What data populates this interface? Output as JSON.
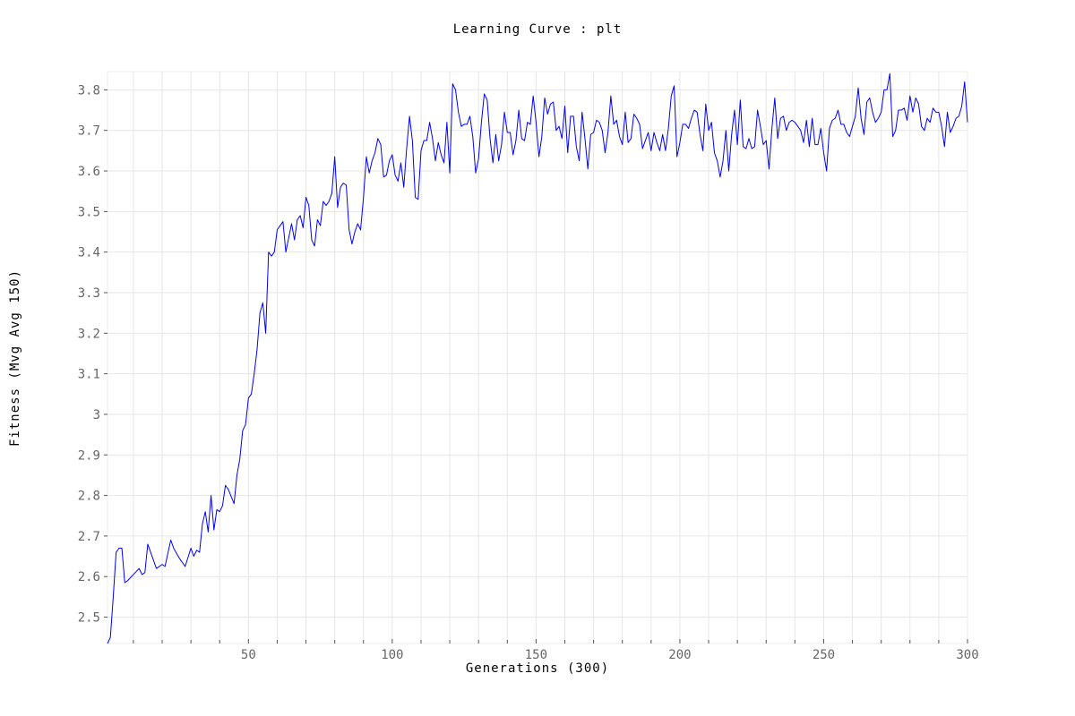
{
  "chart_data": {
    "type": "line",
    "title": "Learning Curve : plt",
    "xlabel": "Generations (300)",
    "ylabel": "Fitness (Mvg Avg 150)",
    "xlim": [
      1,
      300
    ],
    "ylim": [
      2.435,
      3.845
    ],
    "x_ticks": [
      50,
      100,
      150,
      200,
      250,
      300
    ],
    "y_ticks": [
      2.5,
      2.6,
      2.7,
      2.8,
      2.9,
      3.0,
      3.1,
      3.2,
      3.3,
      3.4,
      3.5,
      3.6,
      3.7,
      3.8
    ],
    "y_tick_labels": [
      "2.5",
      "2.6",
      "2.7",
      "2.8",
      "2.9",
      "3",
      "3.1",
      "3.2",
      "3.3",
      "3.4",
      "3.5",
      "3.6",
      "3.7",
      "3.8"
    ],
    "grid": true,
    "series": [
      {
        "color": "#0000ff",
        "keypoints": [
          [
            1,
            2.435
          ],
          [
            2,
            2.45
          ],
          [
            3,
            2.55
          ],
          [
            4,
            2.66
          ],
          [
            5,
            2.67
          ],
          [
            6,
            2.67
          ],
          [
            7,
            2.585
          ],
          [
            8,
            2.59
          ],
          [
            10,
            2.605
          ],
          [
            12,
            2.62
          ],
          [
            13,
            2.605
          ],
          [
            14,
            2.61
          ],
          [
            15,
            2.68
          ],
          [
            17,
            2.64
          ],
          [
            18,
            2.62
          ],
          [
            20,
            2.63
          ],
          [
            21,
            2.625
          ],
          [
            23,
            2.69
          ],
          [
            24,
            2.67
          ],
          [
            26,
            2.645
          ],
          [
            28,
            2.625
          ],
          [
            30,
            2.67
          ],
          [
            31,
            2.65
          ],
          [
            32,
            2.665
          ],
          [
            33,
            2.66
          ],
          [
            34,
            2.73
          ],
          [
            35,
            2.76
          ],
          [
            36,
            2.71
          ],
          [
            37,
            2.8
          ],
          [
            38,
            2.715
          ],
          [
            39,
            2.765
          ],
          [
            40,
            2.76
          ],
          [
            41,
            2.775
          ],
          [
            42,
            2.825
          ],
          [
            43,
            2.815
          ],
          [
            45,
            2.78
          ],
          [
            46,
            2.85
          ],
          [
            47,
            2.89
          ],
          [
            48,
            2.96
          ],
          [
            49,
            2.975
          ],
          [
            50,
            3.04
          ],
          [
            51,
            3.05
          ],
          [
            52,
            3.1
          ],
          [
            53,
            3.16
          ],
          [
            54,
            3.25
          ],
          [
            55,
            3.275
          ],
          [
            56,
            3.2
          ],
          [
            57,
            3.4
          ],
          [
            58,
            3.39
          ],
          [
            59,
            3.4
          ],
          [
            60,
            3.455
          ],
          [
            62,
            3.475
          ],
          [
            63,
            3.4
          ],
          [
            65,
            3.47
          ],
          [
            66,
            3.43
          ],
          [
            67,
            3.48
          ],
          [
            68,
            3.49
          ],
          [
            69,
            3.46
          ],
          [
            70,
            3.535
          ],
          [
            71,
            3.515
          ],
          [
            72,
            3.43
          ],
          [
            73,
            3.415
          ],
          [
            74,
            3.48
          ],
          [
            75,
            3.465
          ],
          [
            76,
            3.525
          ],
          [
            77,
            3.515
          ],
          [
            78,
            3.525
          ],
          [
            79,
            3.545
          ],
          [
            80,
            3.635
          ],
          [
            81,
            3.51
          ],
          [
            82,
            3.56
          ],
          [
            83,
            3.57
          ],
          [
            84,
            3.565
          ],
          [
            85,
            3.455
          ],
          [
            86,
            3.42
          ],
          [
            87,
            3.45
          ],
          [
            88,
            3.47
          ],
          [
            89,
            3.455
          ],
          [
            90,
            3.535
          ],
          [
            91,
            3.635
          ],
          [
            92,
            3.595
          ],
          [
            93,
            3.625
          ],
          [
            94,
            3.645
          ],
          [
            95,
            3.68
          ],
          [
            96,
            3.665
          ],
          [
            97,
            3.585
          ],
          [
            98,
            3.59
          ],
          [
            99,
            3.625
          ],
          [
            100,
            3.64
          ],
          [
            101,
            3.59
          ],
          [
            102,
            3.575
          ],
          [
            103,
            3.62
          ],
          [
            104,
            3.56
          ],
          [
            105,
            3.655
          ],
          [
            106,
            3.735
          ],
          [
            107,
            3.675
          ],
          [
            108,
            3.535
          ],
          [
            109,
            3.53
          ],
          [
            110,
            3.65
          ],
          [
            111,
            3.675
          ],
          [
            112,
            3.675
          ],
          [
            113,
            3.72
          ],
          [
            114,
            3.68
          ],
          [
            115,
            3.625
          ],
          [
            116,
            3.67
          ],
          [
            117,
            3.64
          ],
          [
            118,
            3.62
          ],
          [
            119,
            3.72
          ],
          [
            120,
            3.595
          ],
          [
            121,
            3.815
          ],
          [
            122,
            3.8
          ],
          [
            123,
            3.745
          ],
          [
            124,
            3.71
          ],
          [
            125,
            3.715
          ],
          [
            126,
            3.715
          ],
          [
            127,
            3.735
          ],
          [
            128,
            3.685
          ],
          [
            129,
            3.595
          ],
          [
            130,
            3.63
          ],
          [
            131,
            3.72
          ],
          [
            132,
            3.79
          ],
          [
            133,
            3.775
          ],
          [
            134,
            3.68
          ],
          [
            135,
            3.62
          ],
          [
            136,
            3.69
          ],
          [
            137,
            3.625
          ],
          [
            138,
            3.665
          ],
          [
            139,
            3.745
          ],
          [
            140,
            3.695
          ],
          [
            141,
            3.695
          ],
          [
            142,
            3.64
          ],
          [
            143,
            3.675
          ],
          [
            144,
            3.75
          ],
          [
            145,
            3.68
          ],
          [
            146,
            3.675
          ],
          [
            147,
            3.72
          ],
          [
            148,
            3.715
          ],
          [
            149,
            3.785
          ],
          [
            150,
            3.72
          ],
          [
            151,
            3.635
          ],
          [
            152,
            3.685
          ],
          [
            153,
            3.78
          ],
          [
            154,
            3.74
          ],
          [
            155,
            3.765
          ],
          [
            156,
            3.77
          ],
          [
            157,
            3.7
          ],
          [
            158,
            3.71
          ],
          [
            159,
            3.68
          ],
          [
            160,
            3.76
          ],
          [
            161,
            3.645
          ],
          [
            162,
            3.735
          ],
          [
            163,
            3.735
          ],
          [
            164,
            3.66
          ],
          [
            165,
            3.625
          ],
          [
            166,
            3.745
          ],
          [
            167,
            3.68
          ],
          [
            168,
            3.605
          ],
          [
            169,
            3.69
          ],
          [
            170,
            3.695
          ],
          [
            171,
            3.725
          ],
          [
            172,
            3.72
          ],
          [
            173,
            3.7
          ],
          [
            174,
            3.645
          ],
          [
            175,
            3.695
          ],
          [
            176,
            3.785
          ],
          [
            177,
            3.715
          ],
          [
            178,
            3.725
          ],
          [
            179,
            3.685
          ],
          [
            180,
            3.665
          ],
          [
            181,
            3.745
          ],
          [
            182,
            3.67
          ],
          [
            183,
            3.68
          ],
          [
            184,
            3.74
          ],
          [
            185,
            3.73
          ],
          [
            186,
            3.715
          ],
          [
            187,
            3.655
          ],
          [
            188,
            3.675
          ],
          [
            189,
            3.695
          ],
          [
            190,
            3.65
          ],
          [
            191,
            3.695
          ],
          [
            192,
            3.67
          ],
          [
            193,
            3.65
          ],
          [
            194,
            3.69
          ],
          [
            195,
            3.65
          ],
          [
            196,
            3.705
          ],
          [
            197,
            3.785
          ],
          [
            198,
            3.81
          ],
          [
            199,
            3.635
          ],
          [
            200,
            3.67
          ],
          [
            201,
            3.715
          ],
          [
            202,
            3.715
          ],
          [
            203,
            3.705
          ],
          [
            204,
            3.73
          ],
          [
            205,
            3.75
          ],
          [
            206,
            3.745
          ],
          [
            207,
            3.69
          ],
          [
            208,
            3.65
          ],
          [
            209,
            3.765
          ],
          [
            210,
            3.7
          ],
          [
            211,
            3.72
          ],
          [
            212,
            3.645
          ],
          [
            213,
            3.625
          ],
          [
            214,
            3.585
          ],
          [
            215,
            3.625
          ],
          [
            216,
            3.7
          ],
          [
            217,
            3.6
          ],
          [
            218,
            3.69
          ],
          [
            219,
            3.75
          ],
          [
            220,
            3.665
          ],
          [
            221,
            3.775
          ],
          [
            222,
            3.66
          ],
          [
            223,
            3.655
          ],
          [
            224,
            3.68
          ],
          [
            225,
            3.655
          ],
          [
            226,
            3.66
          ],
          [
            227,
            3.75
          ],
          [
            228,
            3.71
          ],
          [
            229,
            3.665
          ],
          [
            230,
            3.675
          ],
          [
            231,
            3.605
          ],
          [
            232,
            3.705
          ],
          [
            233,
            3.78
          ],
          [
            234,
            3.68
          ],
          [
            235,
            3.73
          ],
          [
            236,
            3.735
          ],
          [
            237,
            3.7
          ],
          [
            238,
            3.72
          ],
          [
            239,
            3.725
          ],
          [
            240,
            3.72
          ],
          [
            241,
            3.71
          ],
          [
            242,
            3.7
          ],
          [
            243,
            3.67
          ],
          [
            244,
            3.725
          ],
          [
            245,
            3.66
          ],
          [
            246,
            3.73
          ],
          [
            247,
            3.665
          ],
          [
            248,
            3.665
          ],
          [
            249,
            3.705
          ],
          [
            250,
            3.645
          ],
          [
            251,
            3.6
          ],
          [
            252,
            3.705
          ],
          [
            253,
            3.725
          ],
          [
            254,
            3.73
          ],
          [
            255,
            3.75
          ],
          [
            256,
            3.715
          ],
          [
            257,
            3.715
          ],
          [
            258,
            3.695
          ],
          [
            259,
            3.685
          ],
          [
            260,
            3.71
          ],
          [
            261,
            3.735
          ],
          [
            262,
            3.805
          ],
          [
            263,
            3.73
          ],
          [
            264,
            3.69
          ],
          [
            265,
            3.77
          ],
          [
            266,
            3.78
          ],
          [
            267,
            3.745
          ],
          [
            268,
            3.72
          ],
          [
            269,
            3.73
          ],
          [
            270,
            3.745
          ],
          [
            271,
            3.8
          ],
          [
            272,
            3.8
          ],
          [
            273,
            3.84
          ],
          [
            274,
            3.685
          ],
          [
            275,
            3.7
          ],
          [
            276,
            3.75
          ],
          [
            277,
            3.75
          ],
          [
            278,
            3.755
          ],
          [
            279,
            3.725
          ],
          [
            280,
            3.785
          ],
          [
            281,
            3.745
          ],
          [
            282,
            3.78
          ],
          [
            283,
            3.765
          ],
          [
            284,
            3.71
          ],
          [
            285,
            3.7
          ],
          [
            286,
            3.73
          ],
          [
            287,
            3.72
          ],
          [
            288,
            3.755
          ],
          [
            289,
            3.745
          ],
          [
            290,
            3.745
          ],
          [
            291,
            3.71
          ],
          [
            292,
            3.66
          ],
          [
            293,
            3.745
          ],
          [
            294,
            3.695
          ],
          [
            295,
            3.71
          ],
          [
            296,
            3.73
          ],
          [
            297,
            3.735
          ],
          [
            298,
            3.76
          ],
          [
            299,
            3.82
          ],
          [
            300,
            3.72
          ]
        ]
      }
    ]
  }
}
